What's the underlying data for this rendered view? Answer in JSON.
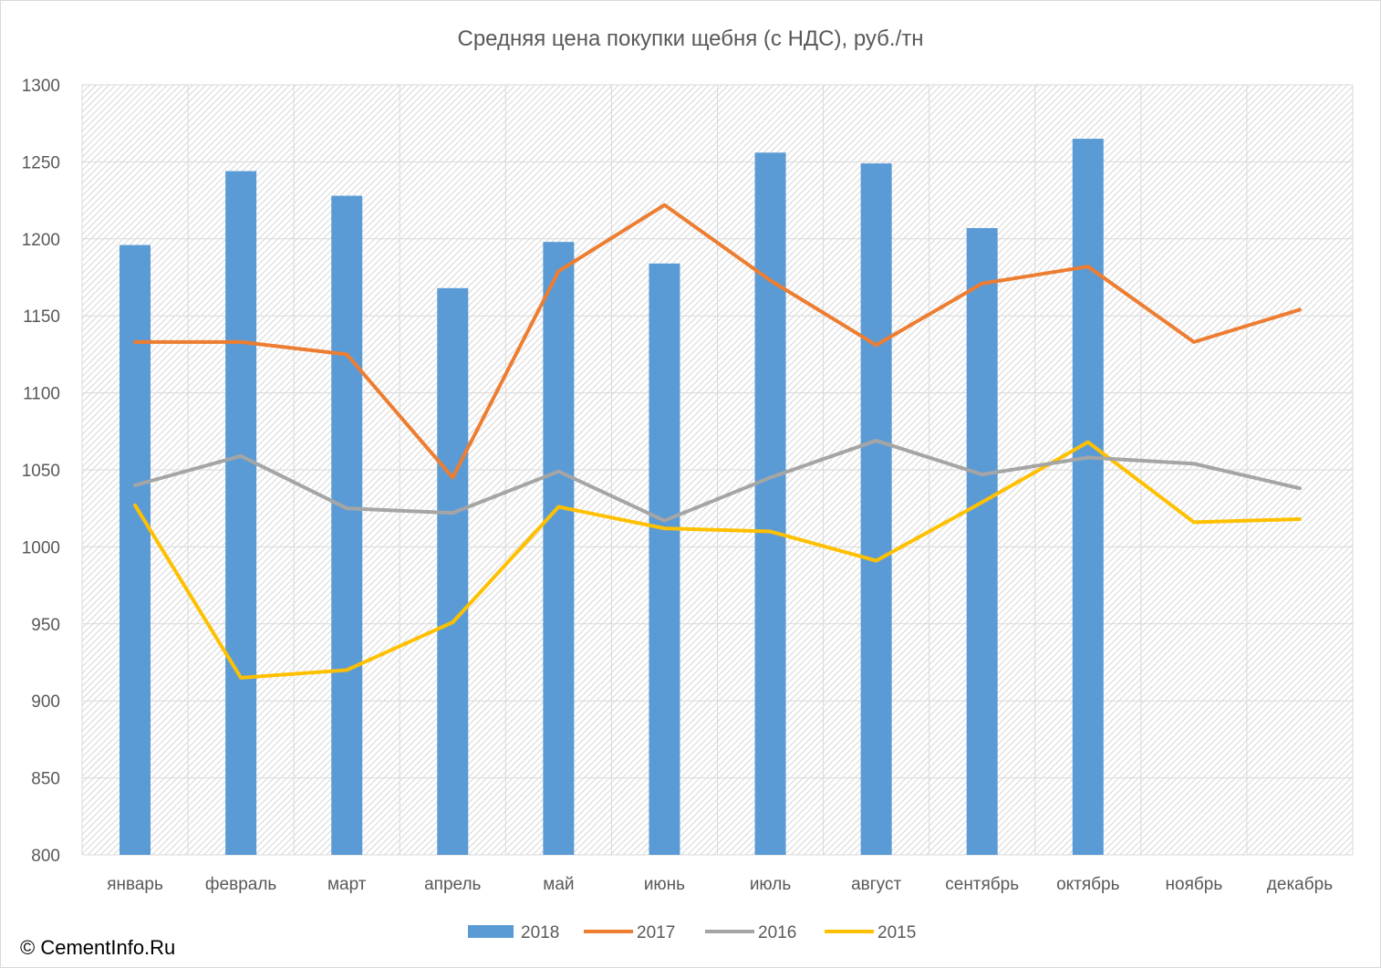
{
  "chart_data": {
    "type": "bar",
    "title": "Средняя цена покупки щебня (с НДС), руб./тн",
    "xlabel": "",
    "ylabel": "",
    "ylim": [
      800,
      1300
    ],
    "yticks": [
      800,
      850,
      900,
      950,
      1000,
      1050,
      1100,
      1150,
      1200,
      1250,
      1300
    ],
    "grid": true,
    "legend_position": "bottom",
    "categories": [
      "январь",
      "февраль",
      "март",
      "апрель",
      "май",
      "июнь",
      "июль",
      "август",
      "сентябрь",
      "октябрь",
      "ноябрь",
      "декабрь"
    ],
    "series": [
      {
        "name": "2018",
        "type": "bar",
        "color": "#5b9bd5",
        "values": [
          1196,
          1244,
          1228,
          1168,
          1198,
          1184,
          1256,
          1249,
          1207,
          1265,
          null,
          null
        ]
      },
      {
        "name": "2017",
        "type": "line",
        "color": "#ed7d31",
        "values": [
          1133,
          1133,
          1125,
          1045,
          1179,
          1222,
          1173,
          1131,
          1171,
          1182,
          1133,
          1154
        ]
      },
      {
        "name": "2016",
        "type": "line",
        "color": "#a5a5a5",
        "values": [
          1040,
          1059,
          1025,
          1022,
          1049,
          1017,
          1045,
          1069,
          1047,
          1058,
          1054,
          1038
        ]
      },
      {
        "name": "2015",
        "type": "line",
        "color": "#ffc000",
        "values": [
          1027,
          915,
          920,
          951,
          1026,
          1012,
          1010,
          991,
          1029,
          1068,
          1016,
          1018
        ]
      }
    ]
  },
  "footer": {
    "copyright": "© CementInfo.Ru"
  }
}
